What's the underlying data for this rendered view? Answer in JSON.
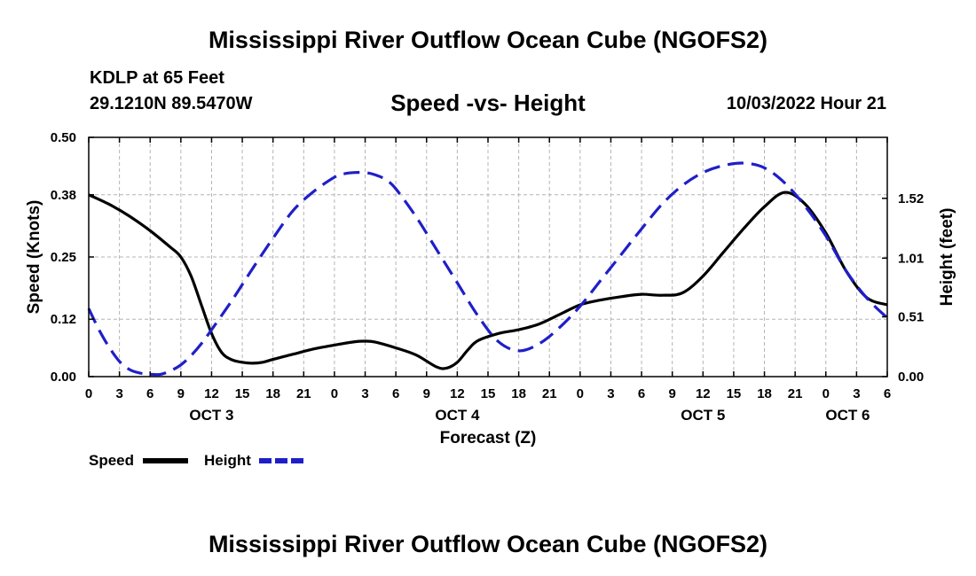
{
  "header": {
    "title": "Mississippi River Outflow Ocean Cube (NGOFS2)",
    "station": "KDLP at 65 Feet",
    "coords": "29.1210N  89.5470W",
    "subtitle": "Speed -vs- Height",
    "datetime": "10/03/2022 Hour 21",
    "bottom_title": "Mississippi River Outflow Ocean Cube (NGOFS2)"
  },
  "colors": {
    "speed": "#000000",
    "height": "#1f1fc8",
    "grid": "#b4b4b4"
  },
  "chart_data": {
    "type": "line",
    "title": "Speed -vs- Height",
    "xlabel": "Forecast (Z)",
    "ylabel_left": "Speed (Knots)",
    "ylabel_right": "Height (feet)",
    "x_range_hours": [
      0,
      78
    ],
    "x_tick_hours": [
      0,
      3,
      6,
      9,
      12,
      15,
      18,
      21,
      24,
      27,
      30,
      33,
      36,
      39,
      42,
      45,
      48,
      51,
      54,
      57,
      60,
      63,
      66,
      69,
      72,
      75,
      78
    ],
    "x_tick_labels": [
      "0",
      "3",
      "6",
      "9",
      "12",
      "15",
      "18",
      "21",
      "0",
      "3",
      "6",
      "9",
      "12",
      "15",
      "18",
      "21",
      "0",
      "3",
      "6",
      "9",
      "12",
      "15",
      "18",
      "21",
      "0",
      "3",
      "6"
    ],
    "day_labels": [
      {
        "hour": 12,
        "label": "OCT 3"
      },
      {
        "hour": 36,
        "label": "OCT 4"
      },
      {
        "hour": 60,
        "label": "OCT 5"
      },
      {
        "hour": 75,
        "label": "OCT 6"
      }
    ],
    "y_left_range": [
      0,
      0.5
    ],
    "y_left_ticks": [
      0.0,
      0.12,
      0.25,
      0.38,
      0.5
    ],
    "y_left_tick_labels": [
      "0.00",
      "0.12",
      "0.25",
      "0.38",
      "0.50"
    ],
    "y_right_range": [
      0.0,
      2.0
    ],
    "y_right_ticks": [
      0.0,
      0.51,
      1.01,
      1.52
    ],
    "y_right_tick_labels": [
      "0.00",
      "0.51",
      "1.01",
      "1.52"
    ],
    "grid": true,
    "series": [
      {
        "name": "Speed",
        "axis": "left",
        "style": "solid",
        "x": [
          0,
          2,
          4,
          6,
          8,
          9,
          10,
          11,
          12,
          13,
          14,
          15,
          16,
          17,
          18,
          20,
          22,
          24,
          26,
          27,
          28,
          30,
          32,
          34,
          35,
          36,
          37,
          38,
          40,
          42,
          44,
          46,
          48,
          50,
          52,
          54,
          56,
          58,
          60,
          62,
          64,
          66,
          68,
          70,
          72,
          74,
          76,
          78
        ],
        "values": [
          0.38,
          0.36,
          0.335,
          0.305,
          0.27,
          0.25,
          0.21,
          0.15,
          0.09,
          0.05,
          0.035,
          0.03,
          0.028,
          0.03,
          0.036,
          0.047,
          0.058,
          0.066,
          0.073,
          0.074,
          0.072,
          0.06,
          0.045,
          0.02,
          0.018,
          0.03,
          0.055,
          0.075,
          0.09,
          0.098,
          0.11,
          0.13,
          0.15,
          0.16,
          0.167,
          0.172,
          0.17,
          0.175,
          0.21,
          0.26,
          0.31,
          0.355,
          0.385,
          0.36,
          0.3,
          0.22,
          0.165,
          0.15
        ]
      },
      {
        "name": "Height",
        "axis": "right",
        "style": "dashed",
        "x": [
          0,
          1,
          2,
          3,
          4,
          5,
          6,
          7,
          8,
          9,
          10,
          11,
          12,
          14,
          16,
          18,
          20,
          22,
          24,
          25,
          26,
          27,
          28,
          29,
          30,
          32,
          34,
          36,
          38,
          40,
          42,
          44,
          46,
          48,
          50,
          52,
          54,
          56,
          58,
          60,
          62,
          64,
          66,
          68,
          70,
          72,
          74,
          76,
          78
        ],
        "values": [
          0.58,
          0.4,
          0.25,
          0.13,
          0.06,
          0.03,
          0.02,
          0.02,
          0.05,
          0.1,
          0.18,
          0.28,
          0.4,
          0.65,
          0.92,
          1.18,
          1.42,
          1.58,
          1.7,
          1.73,
          1.74,
          1.74,
          1.72,
          1.68,
          1.6,
          1.36,
          1.08,
          0.8,
          0.52,
          0.3,
          0.22,
          0.28,
          0.42,
          0.6,
          0.82,
          1.04,
          1.26,
          1.47,
          1.63,
          1.74,
          1.8,
          1.82,
          1.78,
          1.65,
          1.45,
          1.2,
          0.9,
          0.67,
          0.5
        ]
      }
    ],
    "legend": [
      {
        "label": "Speed",
        "series": "Speed"
      },
      {
        "label": "Height",
        "series": "Height"
      }
    ],
    "legend_position": "bottom-left"
  }
}
